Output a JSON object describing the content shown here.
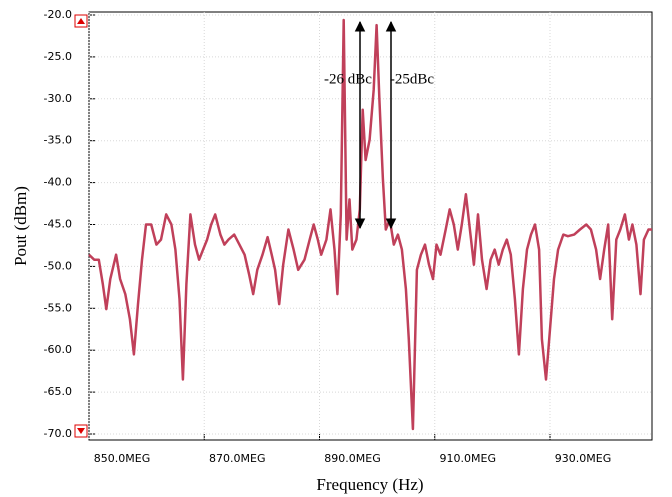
{
  "chart_data": {
    "type": "line",
    "xlabel": "Frequency (Hz)",
    "ylabel": "Pout (dBm)",
    "annotations": [
      "-26 dBc",
      "-25dBc"
    ],
    "xlim": [
      850,
      947.7
    ],
    "ylim": [
      -70,
      -20
    ],
    "xticks": [
      {
        "value": 850,
        "label": "850.0MEG"
      },
      {
        "value": 870,
        "label": "870.0MEG"
      },
      {
        "value": 890,
        "label": "890.0MEG"
      },
      {
        "value": 910,
        "label": "910.0MEG"
      },
      {
        "value": 930,
        "label": "930.0MEG"
      }
    ],
    "yticks": [
      {
        "value": -20,
        "label": "-20.0"
      },
      {
        "value": -25,
        "label": "-25.0"
      },
      {
        "value": -30,
        "label": "-30.0"
      },
      {
        "value": -35,
        "label": "-35.0"
      },
      {
        "value": -40,
        "label": "-40.0"
      },
      {
        "value": -45,
        "label": "-45.0"
      },
      {
        "value": -50,
        "label": "-50.0"
      },
      {
        "value": -55,
        "label": "-55.0"
      },
      {
        "value": -60,
        "label": "-60.0"
      },
      {
        "value": -65,
        "label": "-65.0"
      },
      {
        "value": -70,
        "label": "-70.0"
      }
    ],
    "grid": true,
    "x": [
      850.0,
      850.9,
      851.7,
      852.4,
      853.0,
      853.7,
      854.7,
      855.4,
      856.3,
      857.1,
      857.8,
      858.5,
      859.2,
      859.9,
      860.8,
      861.7,
      862.5,
      863.4,
      864.3,
      865.0,
      865.7,
      866.3,
      866.9,
      867.6,
      868.4,
      869.1,
      869.8,
      870.5,
      871.2,
      871.9,
      872.8,
      873.5,
      874.2,
      875.2,
      876.1,
      877.0,
      877.8,
      878.5,
      879.2,
      880.1,
      881.0,
      881.7,
      882.3,
      883.0,
      883.7,
      884.6,
      885.5,
      886.3,
      887.4,
      888.3,
      889.0,
      889.7,
      890.3,
      891.2,
      891.9,
      892.6,
      893.1,
      893.7,
      894.2,
      894.7,
      895.2,
      895.7,
      896.4,
      897.0,
      897.5,
      898.0,
      898.7,
      899.4,
      899.9,
      900.4,
      901.0,
      901.5,
      902.2,
      902.9,
      903.6,
      904.3,
      905.0,
      905.5,
      906.2,
      906.9,
      907.6,
      908.3,
      909.0,
      909.7,
      910.3,
      911.0,
      911.9,
      912.6,
      913.3,
      914.0,
      914.7,
      915.4,
      916.1,
      916.8,
      917.5,
      918.2,
      919.0,
      919.7,
      920.4,
      921.1,
      921.8,
      922.5,
      923.2,
      923.9,
      924.6,
      925.3,
      926.0,
      926.7,
      927.4,
      928.1,
      928.6,
      929.3,
      930.0,
      930.7,
      931.4,
      932.3,
      933.1,
      934.2,
      935.2,
      936.3,
      937.1,
      938.0,
      938.7,
      939.4,
      940.1,
      940.8,
      941.5,
      942.2,
      943.0,
      943.7,
      944.3,
      945.0,
      945.7,
      946.3,
      947.1,
      947.7
    ],
    "series": [
      {
        "color": "#c0405a",
        "values": [
          -48.6,
          -49.2,
          -49.2,
          -52.1,
          -55.1,
          -51.5,
          -48.6,
          -51.5,
          -53.3,
          -56.3,
          -60.5,
          -54.5,
          -49.2,
          -45.0,
          -45.0,
          -47.4,
          -46.8,
          -43.8,
          -45.0,
          -48.0,
          -53.9,
          -63.5,
          -52.1,
          -43.8,
          -47.4,
          -49.2,
          -48.0,
          -46.8,
          -45.0,
          -43.8,
          -46.2,
          -47.4,
          -46.8,
          -46.2,
          -47.4,
          -48.6,
          -51.0,
          -53.3,
          -50.4,
          -48.6,
          -46.5,
          -48.6,
          -50.4,
          -54.5,
          -49.8,
          -45.6,
          -48.0,
          -50.4,
          -49.2,
          -46.8,
          -45.0,
          -46.8,
          -48.6,
          -46.8,
          -43.2,
          -48.0,
          -53.3,
          -43.8,
          -20.6,
          -46.8,
          -42.0,
          -48.0,
          -46.8,
          -43.2,
          -31.3,
          -37.3,
          -34.9,
          -28.9,
          -21.2,
          -30.1,
          -39.6,
          -45.6,
          -44.4,
          -47.4,
          -46.2,
          -48.0,
          -52.7,
          -58.7,
          -69.4,
          -50.4,
          -48.6,
          -47.4,
          -49.8,
          -51.5,
          -47.4,
          -48.6,
          -45.6,
          -43.2,
          -45.0,
          -48.0,
          -45.0,
          -41.4,
          -45.6,
          -49.8,
          -43.8,
          -49.2,
          -52.7,
          -49.2,
          -48.0,
          -49.8,
          -48.0,
          -46.8,
          -48.6,
          -53.9,
          -60.5,
          -52.7,
          -48.0,
          -46.2,
          -45.0,
          -48.0,
          -58.7,
          -63.5,
          -57.5,
          -51.5,
          -48.0,
          -46.2,
          -46.4,
          -46.2,
          -45.6,
          -45.0,
          -45.6,
          -48.0,
          -51.5,
          -48.0,
          -45.0,
          -56.3,
          -46.8,
          -45.6,
          -43.8,
          -46.8,
          -45.0,
          -47.4,
          -53.3,
          -46.8,
          -45.6,
          -45.6
        ]
      }
    ]
  }
}
